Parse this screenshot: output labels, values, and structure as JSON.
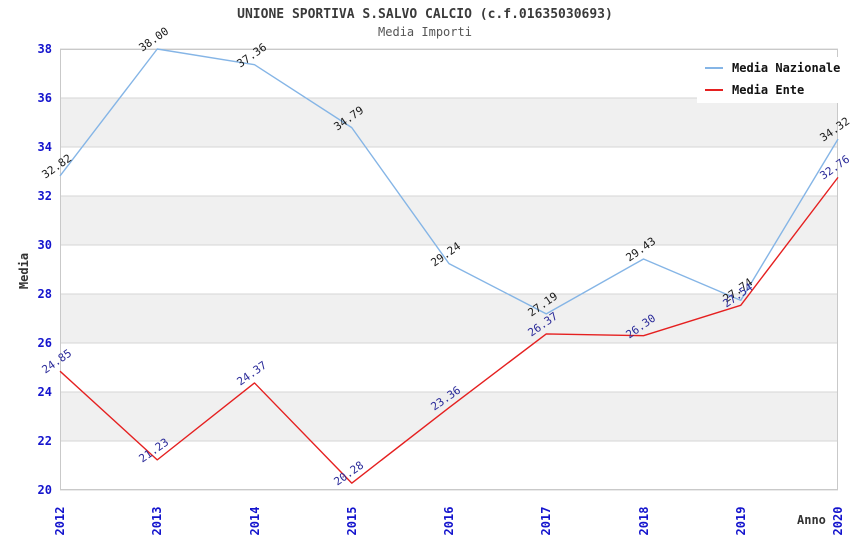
{
  "header": {
    "title": "UNIONE SPORTIVA S.SALVO CALCIO (c.f.01635030693)",
    "subtitle": "Media Importi"
  },
  "legend": {
    "items": [
      {
        "label": "Media Nazionale",
        "color": "#85b5e6"
      },
      {
        "label": "Media Ente",
        "color": "#e52020"
      }
    ]
  },
  "axes": {
    "y_label": "Media",
    "x_label": "Anno"
  },
  "colors": {
    "tick_text": "#1414cd",
    "nazionale_label_text": "#1a1a1a",
    "ente_label_text": "#2a2a99",
    "gridline": "#d6d6d6",
    "plot_border": "#c9c9c9",
    "stripe": "#f0f0f0"
  },
  "chart_data": {
    "type": "line",
    "title": "UNIONE SPORTIVA S.SALVO CALCIO (c.f.01635030693)",
    "subtitle": "Media Importi",
    "xlabel": "Anno",
    "ylabel": "Media",
    "x": [
      2012,
      2013,
      2014,
      2015,
      2016,
      2017,
      2018,
      2019,
      2020
    ],
    "ylim": [
      20,
      38
    ],
    "ytick_step": 2,
    "grid": true,
    "legend_position": "top-right",
    "series": [
      {
        "name": "Media Nazionale",
        "color": "#85b5e6",
        "label_color": "#1a1a1a",
        "values": [
          32.82,
          38.0,
          37.36,
          34.79,
          29.24,
          27.19,
          29.43,
          27.74,
          34.32
        ]
      },
      {
        "name": "Media Ente",
        "color": "#e52020",
        "label_color": "#2a2a99",
        "values": [
          24.85,
          21.23,
          24.37,
          20.28,
          23.36,
          26.37,
          26.3,
          27.54,
          32.76
        ]
      }
    ]
  }
}
